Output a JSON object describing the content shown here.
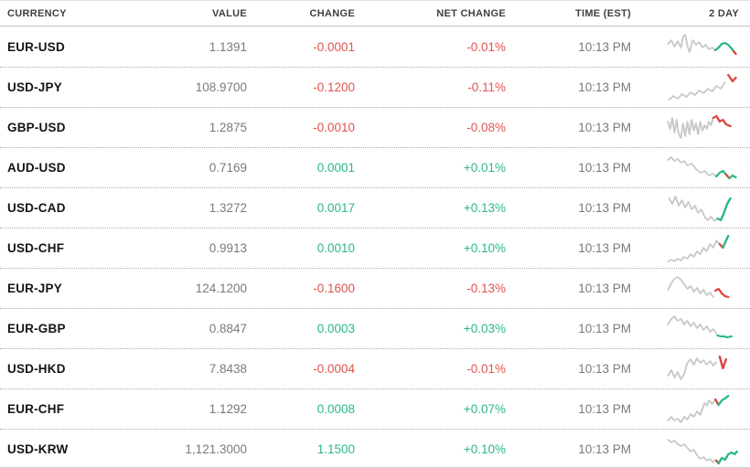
{
  "colors": {
    "red_text": "#e0534e",
    "green_text": "#2ab885",
    "spark_gray": "#c8c8c8",
    "spark_green": "#2ab885",
    "spark_red": "#e0453e",
    "header_text": "#3f3f3f",
    "value_text": "#7a7a7a",
    "currency_text": "#141414"
  },
  "header": {
    "columns": [
      "CURRENCY",
      "VALUE",
      "CHANGE",
      "NET CHANGE",
      "TIME (EST)",
      "2 DAY"
    ]
  },
  "rows": [
    {
      "currency": "EUR-USD",
      "value": "1.1391",
      "change": "-0.0001",
      "net_change": "-0.01%",
      "time": "10:13 PM",
      "spark": [
        {
          "c": "gray",
          "p": "2,16 5,12 8,19 11,13 14,20 16,8 18,6 20,18 22,25 25,12 28,17 31,14 34,20 37,17 40,22 43,20 46,23"
        },
        {
          "c": "green",
          "p": "46,23 49,20 52,16 55,15 58,17 61,21 63,24"
        },
        {
          "c": "red",
          "p": "63,24 65,27"
        }
      ]
    },
    {
      "currency": "USD-JPY",
      "value": "108.9700",
      "change": "-0.1200",
      "net_change": "-0.11%",
      "time": "10:13 PM",
      "spark": [
        {
          "c": "gray",
          "p": "3,32 7,28 11,31 15,26 19,29 23,24 27,27 31,22 35,25 39,20 43,23 47,17 51,20 55,13"
        },
        {
          "c": "red",
          "p": "58,5 62,12 65,8"
        }
      ]
    },
    {
      "currency": "GBP-USD",
      "value": "1.2875",
      "change": "-0.0010",
      "net_change": "-0.08%",
      "time": "10:13 PM",
      "spark": [
        {
          "c": "gray",
          "p": "2,12 4,20 6,8 8,24 10,10 12,26 14,30 16,14 18,28 20,12 22,26 24,10 26,22 28,14 30,26 32,12 34,22 36,16 38,20 40,12 42,16 44,8"
        },
        {
          "c": "red",
          "p": "44,8 47,6 50,12 53,10 56,15 60,17"
        }
      ]
    },
    {
      "currency": "AUD-USD",
      "value": "0.7169",
      "change": "0.0001",
      "net_change": "+0.01%",
      "time": "10:13 PM",
      "spark": [
        {
          "c": "gray",
          "p": "2,10 5,7 8,11 11,9 14,13 17,11 20,16 24,14 28,20 32,24 36,22 40,27 44,25 47,28"
        },
        {
          "c": "green",
          "p": "47,28 50,24 53,22 56,26"
        },
        {
          "c": "red",
          "p": "56,26 59,30"
        },
        {
          "c": "green",
          "p": "59,30 62,27 65,29"
        }
      ]
    },
    {
      "currency": "USD-CAD",
      "value": "1.3272",
      "change": "0.0017",
      "net_change": "+0.13%",
      "time": "10:13 PM",
      "spark": [
        {
          "c": "gray",
          "p": "3,8 6,14 9,6 12,16 15,10 18,18 21,12 24,20 27,16 30,24 33,20 36,28 39,32 42,28 45,33 48,30"
        },
        {
          "c": "green",
          "p": "48,30 51,32 54,24 57,14 60,8"
        }
      ]
    },
    {
      "currency": "USD-CHF",
      "value": "0.9913",
      "change": "0.0010",
      "net_change": "+0.10%",
      "time": "10:13 PM",
      "spark": [
        {
          "c": "gray",
          "p": "2,33 5,31 8,33 11,30 14,32 17,28 20,30 23,25 26,28 29,22 32,25 35,18 38,22 41,14 44,18 47,10 50,14"
        },
        {
          "c": "red",
          "p": "50,14 53,18"
        },
        {
          "c": "green",
          "p": "53,18 56,10 58,5"
        }
      ]
    },
    {
      "currency": "EUR-JPY",
      "value": "124.1200",
      "change": "-0.1600",
      "net_change": "-0.13%",
      "time": "10:13 PM",
      "spark": [
        {
          "c": "gray",
          "p": "2,20 5,13 8,8 11,6 14,9 17,14 20,19 23,16 26,22 29,18 32,24 35,20 38,26 41,23 44,28"
        },
        {
          "c": "red",
          "p": "46,21 49,19 52,24 55,27 58,28"
        }
      ]
    },
    {
      "currency": "EUR-GBP",
      "value": "0.8847",
      "change": "0.0003",
      "net_change": "+0.03%",
      "time": "10:13 PM",
      "spark": [
        {
          "c": "gray",
          "p": "2,14 5,8 8,5 11,10 14,8 17,14 20,10 23,16 26,12 29,18 32,14 35,20 38,16 41,22 44,19 47,24"
        },
        {
          "c": "green",
          "p": "48,26 51,27 54,27 57,28 61,27"
        }
      ]
    },
    {
      "currency": "USD-HKD",
      "value": "7.8438",
      "change": "-0.0004",
      "net_change": "-0.01%",
      "time": "10:13 PM",
      "spark": [
        {
          "c": "gray",
          "p": "2,26 5,20 8,28 11,22 14,30 17,24 20,12 23,8 26,14 29,7 32,12 35,9 38,14 41,10 44,15 47,11"
        },
        {
          "c": "red",
          "p": "50,5 53,18 56,8"
        }
      ]
    },
    {
      "currency": "EUR-CHF",
      "value": "1.1292",
      "change": "0.0008",
      "net_change": "+0.07%",
      "time": "10:13 PM",
      "spark": [
        {
          "c": "gray",
          "p": "2,31 5,27 8,31 11,29 14,33 17,27 20,30 23,24 26,27 29,21 32,25 34,18 36,12 38,15 40,9 43,13 46,8"
        },
        {
          "c": "red",
          "p": "46,8 49,14"
        },
        {
          "c": "green",
          "p": "49,14 52,9 55,7 58,4"
        }
      ]
    },
    {
      "currency": "USD-KRW",
      "value": "1,121.3000",
      "change": "1.1500",
      "net_change": "+0.10%",
      "time": "10:13 PM",
      "spark": [
        {
          "c": "gray",
          "p": "2,8 5,11 8,9 11,13 14,15 17,13 20,17 23,21 26,19 29,25 32,29 35,27 38,31 41,29 44,33 46,30"
        },
        {
          "c": "red",
          "p": "47,31 49,34"
        },
        {
          "c": "green",
          "p": "49,34 52,28 55,30 58,24 61,22 64,24 66,21"
        }
      ]
    }
  ]
}
